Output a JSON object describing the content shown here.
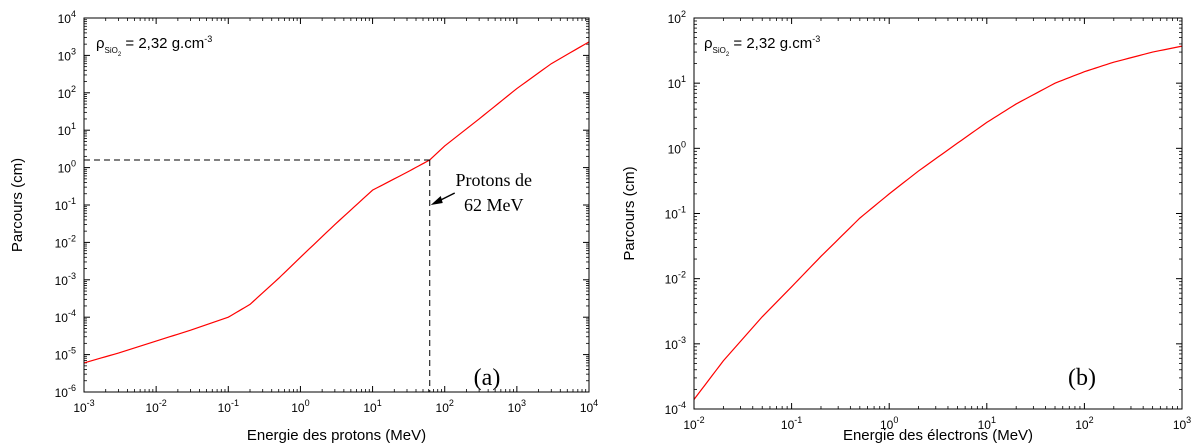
{
  "chart_data": [
    {
      "type": "line",
      "panel_label": "(a)",
      "xlabel": "Energie des protons (MeV)",
      "ylabel": "Parcours (cm)",
      "xscale": "log",
      "yscale": "log",
      "xlim": [
        0.001,
        10000
      ],
      "ylim": [
        1e-06,
        10000
      ],
      "x_tick_exponents": [
        -3,
        -2,
        -1,
        0,
        1,
        2,
        3,
        4
      ],
      "y_tick_exponents": [
        -6,
        -5,
        -4,
        -3,
        -2,
        -1,
        0,
        1,
        2,
        3,
        4
      ],
      "density_label": {
        "symbol": "ρ",
        "subscript": "SiO",
        "subsubscript": "2",
        "text": " = 2,32 g.cm",
        "superscript": "-3"
      },
      "line_color": "#ff0000",
      "series": [
        {
          "x": [
            0.001,
            0.003,
            0.01,
            0.03,
            0.1,
            0.2,
            0.5,
            1,
            3,
            10,
            30,
            62,
            100,
            300,
            1000,
            3000,
            10000
          ],
          "y": [
            6e-06,
            1.1e-05,
            2.3e-05,
            4.5e-05,
            0.0001,
            0.00022,
            0.0011,
            0.004,
            0.03,
            0.25,
            0.75,
            1.6,
            3.8,
            20,
            130,
            600,
            2300
          ]
        }
      ],
      "annotation": {
        "lines": [
          "Protons de",
          "62 MeV"
        ],
        "x": 62,
        "y": 1.6
      }
    },
    {
      "type": "line",
      "panel_label": "(b)",
      "xlabel": "Energie des électrons (MeV)",
      "ylabel": "Parcours (cm)",
      "xscale": "log",
      "yscale": "log",
      "xlim": [
        0.01,
        1000
      ],
      "ylim": [
        0.0001,
        100
      ],
      "x_tick_exponents": [
        -2,
        -1,
        0,
        1,
        2,
        3
      ],
      "y_tick_exponents": [
        -4,
        -3,
        -2,
        -1,
        0,
        1,
        2
      ],
      "density_label": {
        "symbol": "ρ",
        "subscript": "SiO",
        "subsubscript": "2",
        "text": " = 2,32 g.cm",
        "superscript": "-3"
      },
      "line_color": "#ff0000",
      "series": [
        {
          "x": [
            0.01,
            0.02,
            0.05,
            0.1,
            0.2,
            0.5,
            1,
            2,
            5,
            10,
            20,
            50,
            100,
            200,
            500,
            1000
          ],
          "y": [
            0.00014,
            0.00055,
            0.0026,
            0.0075,
            0.022,
            0.085,
            0.2,
            0.45,
            1.2,
            2.5,
            4.8,
            10,
            15,
            21,
            30,
            37
          ]
        }
      ]
    }
  ]
}
